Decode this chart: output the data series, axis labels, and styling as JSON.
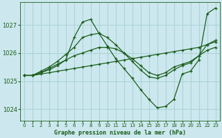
{
  "background_color": "#cce8ee",
  "grid_color": "#aad4d8",
  "line_color": "#1a5c1a",
  "marker": "+",
  "xlabel": "Graphe pression niveau de la mer (hPa)",
  "xlim": [
    -0.5,
    23.5
  ],
  "ylim": [
    1023.6,
    1027.8
  ],
  "yticks": [
    1024,
    1025,
    1026,
    1027
  ],
  "xticks": [
    0,
    1,
    2,
    3,
    4,
    5,
    6,
    7,
    8,
    9,
    10,
    11,
    12,
    13,
    14,
    15,
    16,
    17,
    18,
    19,
    20,
    21,
    22,
    23
  ],
  "series": [
    {
      "x": [
        0,
        1,
        2,
        3,
        4,
        5,
        6,
        7,
        8,
        9,
        10,
        11,
        12,
        13,
        14,
        15,
        16,
        17,
        18,
        19,
        20,
        21,
        22,
        23
      ],
      "y": [
        1025.2,
        1025.2,
        1025.25,
        1025.3,
        1025.35,
        1025.4,
        1025.45,
        1025.5,
        1025.55,
        1025.6,
        1025.65,
        1025.7,
        1025.75,
        1025.8,
        1025.85,
        1025.9,
        1025.95,
        1026.0,
        1026.05,
        1026.1,
        1026.15,
        1026.2,
        1026.3,
        1026.4
      ]
    },
    {
      "x": [
        0,
        1,
        2,
        3,
        4,
        5,
        6,
        7,
        8,
        9,
        10,
        11,
        12,
        13,
        14,
        15,
        16,
        17,
        18,
        19,
        20,
        21,
        22,
        23
      ],
      "y": [
        1025.2,
        1025.2,
        1025.3,
        1025.45,
        1025.6,
        1025.75,
        1025.9,
        1026.0,
        1026.1,
        1026.2,
        1026.2,
        1026.15,
        1026.0,
        1025.8,
        1025.55,
        1025.3,
        1025.2,
        1025.3,
        1025.5,
        1025.6,
        1025.7,
        1025.9,
        1026.1,
        1026.2
      ]
    },
    {
      "x": [
        0,
        1,
        2,
        3,
        4,
        5,
        6,
        7,
        8,
        9,
        10,
        11,
        12,
        13,
        14,
        15,
        16,
        17,
        18,
        19,
        20,
        21,
        22,
        23
      ],
      "y": [
        1025.2,
        1025.2,
        1025.35,
        1025.5,
        1025.7,
        1025.95,
        1026.2,
        1026.55,
        1026.65,
        1026.7,
        1026.55,
        1026.3,
        1026.0,
        1025.7,
        1025.4,
        1025.15,
        1025.1,
        1025.2,
        1025.4,
        1025.55,
        1025.65,
        1025.9,
        1026.3,
        1026.45
      ]
    },
    {
      "x": [
        0,
        1,
        2,
        3,
        4,
        5,
        6,
        7,
        8,
        9,
        10,
        11,
        12,
        13,
        14,
        15,
        16,
        17,
        18,
        19,
        20,
        21,
        22,
        23
      ],
      "y": [
        1025.2,
        1025.2,
        1025.3,
        1025.4,
        1025.55,
        1025.75,
        1026.55,
        1027.1,
        1027.2,
        1026.7,
        1026.25,
        1025.8,
        1025.45,
        1025.1,
        1024.7,
        1024.35,
        1024.05,
        1024.1,
        1024.35,
        1025.25,
        1025.35,
        1025.75,
        1027.4,
        1027.6
      ]
    }
  ]
}
